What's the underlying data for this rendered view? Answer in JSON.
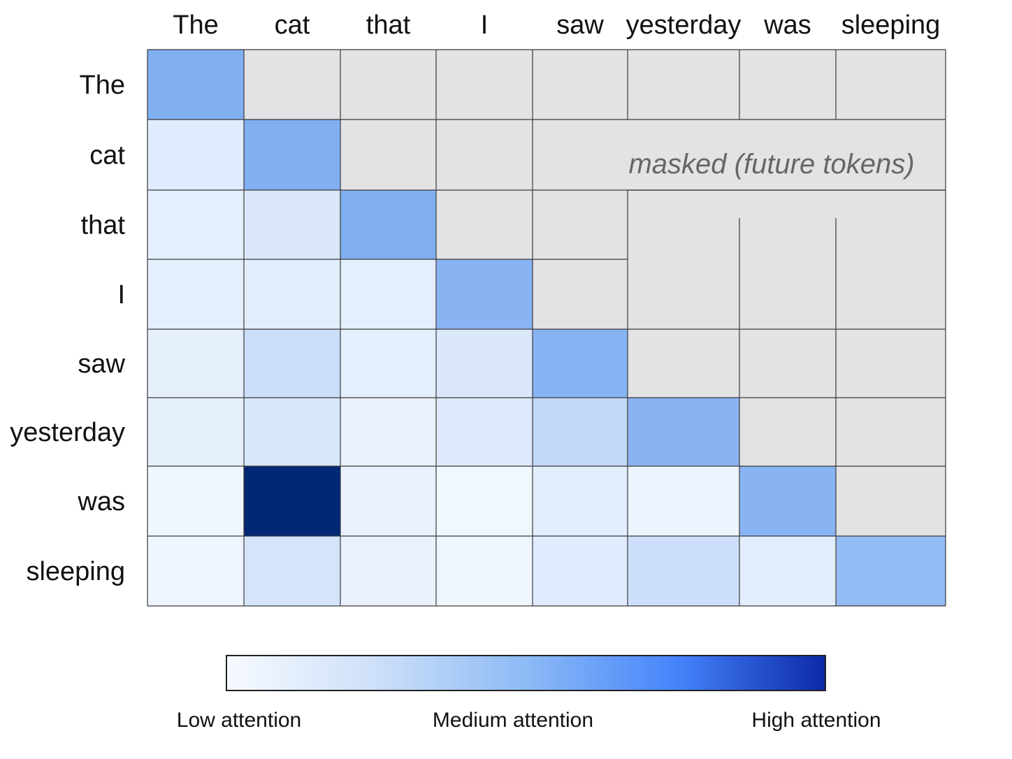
{
  "chart_data": {
    "type": "heatmap",
    "tokens": [
      "The",
      "cat",
      "that",
      "I",
      "saw",
      "yesterday",
      "was",
      "sleeping"
    ],
    "x_labels": [
      "The",
      "cat",
      "that",
      "I",
      "saw",
      "yesterday",
      "was",
      "sleeping"
    ],
    "y_labels": [
      "The",
      "cat",
      "that",
      "I",
      "saw",
      "yesterday",
      "was",
      "sleeping"
    ],
    "values": [
      [
        0.55,
        null,
        null,
        null,
        null,
        null,
        null,
        null
      ],
      [
        0.15,
        0.55,
        null,
        null,
        null,
        null,
        null,
        null
      ],
      [
        0.12,
        0.18,
        0.55,
        null,
        null,
        null,
        null,
        null
      ],
      [
        0.12,
        0.13,
        0.12,
        0.52,
        null,
        null,
        null,
        null
      ],
      [
        0.11,
        0.28,
        0.12,
        0.18,
        0.53,
        null,
        null,
        null
      ],
      [
        0.11,
        0.2,
        0.09,
        0.16,
        0.32,
        0.52,
        null,
        null
      ],
      [
        0.05,
        1.0,
        0.09,
        0.04,
        0.13,
        0.07,
        0.52,
        null
      ],
      [
        0.06,
        0.22,
        0.09,
        0.05,
        0.15,
        0.27,
        0.13,
        0.48
      ]
    ],
    "masked_label": "masked (future tokens)",
    "masked_color": "#e3e3e5",
    "colorbar": {
      "stops": [
        "#f7faff",
        "#cddff9",
        "#8dbbf5",
        "#4684fb",
        "#0b29a9"
      ],
      "labels": [
        "Low attention",
        "Medium attention",
        "High attention"
      ]
    },
    "cell_colors": {
      "diagonal": "#80aff2",
      "darkest": "#002874"
    }
  }
}
